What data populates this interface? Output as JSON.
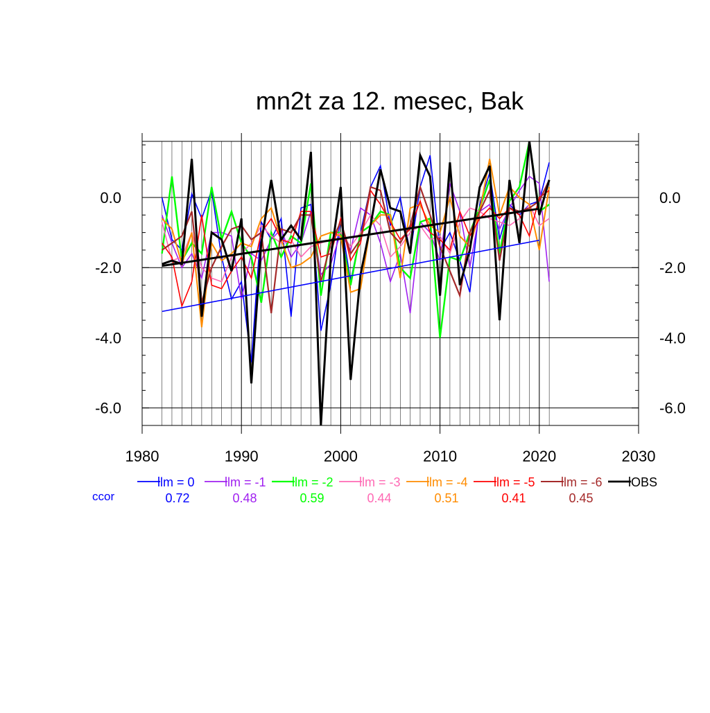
{
  "chart_data": {
    "type": "line",
    "title": "mn2t za 12. mesec, Bak",
    "xlabel": "",
    "ylabel": "",
    "xlim": [
      1980,
      2030
    ],
    "ylim": [
      -6.5,
      1.6
    ],
    "x_ticks": [
      1980,
      1990,
      2000,
      2010,
      2020,
      2030
    ],
    "x_tick_labels": [
      "1980",
      "1990",
      "2000",
      "2010",
      "2020",
      "2030"
    ],
    "y_ticks": [
      0,
      -2,
      -4,
      -6
    ],
    "y_tick_labels": [
      "0.0",
      "-2.0",
      "-4.0",
      "-6.0"
    ],
    "grid": true,
    "legend_position": "bottom",
    "ccor_label": "ccor",
    "x": [
      1982,
      1983,
      1984,
      1985,
      1986,
      1987,
      1988,
      1989,
      1990,
      1991,
      1992,
      1993,
      1994,
      1995,
      1996,
      1997,
      1998,
      1999,
      2000,
      2001,
      2002,
      2003,
      2004,
      2005,
      2006,
      2007,
      2008,
      2009,
      2010,
      2011,
      2012,
      2013,
      2014,
      2015,
      2016,
      2017,
      2018,
      2019,
      2020,
      2021
    ],
    "series": [
      {
        "name": "lm = 0",
        "color": "#0000ff",
        "ccor": "0.72",
        "width": 1.6,
        "values": [
          0.0,
          -1.2,
          -1.5,
          0.1,
          -0.6,
          0.2,
          -1.7,
          -2.9,
          -2.4,
          -4.7,
          -0.7,
          -1.2,
          -0.6,
          -3.4,
          -0.3,
          -0.2,
          -3.8,
          -2.5,
          -0.6,
          -2.4,
          -1.0,
          0.3,
          0.9,
          -0.8,
          0.0,
          -1.6,
          0.3,
          1.2,
          -1.5,
          -1.0,
          -1.8,
          -2.7,
          -0.2,
          0.7,
          -1.2,
          -0.2,
          -0.5,
          -0.2,
          -0.1,
          1.0
        ]
      },
      {
        "name": "lm = -1",
        "color": "#a020f0",
        "ccor": "0.48",
        "width": 1.6,
        "values": [
          -0.5,
          -1.3,
          -2.0,
          -1.6,
          -2.3,
          -1.0,
          -1.0,
          -1.1,
          -2.9,
          -1.6,
          -1.8,
          -1.2,
          -0.9,
          -1.7,
          -1.3,
          -0.4,
          -2.2,
          -1.9,
          -1.0,
          -1.5,
          -0.3,
          -0.5,
          -1.3,
          -2.4,
          -1.6,
          -3.3,
          -0.7,
          -1.0,
          -1.8,
          0.4,
          -0.4,
          -2.0,
          -0.4,
          -0.2,
          -0.9,
          -0.3,
          0.2,
          0.6,
          0.4,
          -2.4
        ]
      },
      {
        "name": "lm = -2",
        "color": "#00ff00",
        "ccor": "0.59",
        "width": 2.4,
        "values": [
          -1.6,
          0.6,
          -1.8,
          -1.3,
          -1.6,
          0.3,
          -1.2,
          -0.4,
          -1.3,
          -1.7,
          -3.0,
          -1.0,
          -1.7,
          -1.1,
          -1.3,
          0.4,
          -2.8,
          -1.0,
          -1.0,
          -2.5,
          -1.0,
          -0.8,
          -0.4,
          -0.5,
          -2.0,
          -2.3,
          -0.7,
          -0.6,
          -4.0,
          -1.7,
          -1.8,
          -1.0,
          -0.3,
          0.5,
          -1.6,
          -0.1,
          0.3,
          1.6,
          -0.4,
          -0.2
        ]
      },
      {
        "name": "lm = -3",
        "color": "#ff69b4",
        "ccor": "0.44",
        "width": 1.6,
        "values": [
          -0.7,
          -1.8,
          -1.7,
          -1.0,
          -2.0,
          -2.3,
          -2.4,
          -1.7,
          -1.6,
          -1.3,
          -0.8,
          -1.1,
          -1.3,
          -1.2,
          -1.7,
          -1.4,
          -1.3,
          -1.2,
          -1.0,
          -1.4,
          -1.0,
          -0.5,
          -0.8,
          -1.7,
          -1.4,
          -1.0,
          -0.8,
          -1.2,
          -1.1,
          -1.6,
          -0.7,
          -0.3,
          -0.4,
          -0.6,
          -0.7,
          -0.8,
          -0.6,
          -0.2,
          -0.8,
          -0.6
        ]
      },
      {
        "name": "lm = -4",
        "color": "#ff8c00",
        "ccor": "0.51",
        "width": 2.0,
        "values": [
          -0.6,
          -0.9,
          -1.9,
          -1.0,
          -3.7,
          -1.3,
          -1.8,
          -1.6,
          -1.3,
          -1.4,
          -0.6,
          -0.3,
          -1.2,
          -2.0,
          -1.9,
          -1.7,
          -1.1,
          -1.0,
          -1.1,
          -2.7,
          -2.6,
          -0.8,
          -0.5,
          -0.5,
          -2.3,
          -0.3,
          -0.2,
          -0.8,
          -1.0,
          0.0,
          -1.1,
          -1.4,
          -0.4,
          1.1,
          -0.5,
          0.3,
          0.0,
          -0.2,
          -1.5,
          0.3
        ]
      },
      {
        "name": "lm = -5",
        "color": "#ff0000",
        "ccor": "0.41",
        "width": 1.6,
        "values": [
          -1.3,
          -1.7,
          -3.1,
          -2.4,
          -0.5,
          -2.5,
          -2.6,
          -2.1,
          -1.7,
          -2.3,
          -1.0,
          -0.6,
          -1.2,
          -1.3,
          -0.4,
          -0.4,
          -1.7,
          -1.6,
          -0.6,
          -1.8,
          -1.3,
          0.2,
          -0.2,
          -0.7,
          -1.2,
          -0.9,
          -0.1,
          -1.0,
          -1.2,
          -1.5,
          -0.4,
          -1.1,
          -0.6,
          -0.3,
          -0.6,
          -0.3,
          -0.5,
          -1.1,
          0.0,
          0.2
        ]
      },
      {
        "name": "lm = -6",
        "color": "#a52a2a",
        "ccor": "0.45",
        "width": 2.2,
        "values": [
          -1.5,
          -1.3,
          -1.1,
          -0.4,
          -3.0,
          -2.0,
          -1.4,
          -0.9,
          -0.8,
          -1.2,
          -1.0,
          -3.3,
          -0.9,
          -1.0,
          -0.5,
          -0.5,
          -2.4,
          -1.3,
          -0.7,
          -1.6,
          -1.2,
          0.3,
          0.2,
          -1.0,
          -1.3,
          -0.8,
          0.3,
          -0.5,
          -1.4,
          -2.1,
          -2.8,
          -1.0,
          -0.4,
          0.2,
          -1.8,
          -0.3,
          -0.4,
          -0.3,
          -0.1,
          0.5
        ]
      },
      {
        "name": "OBS",
        "color": "#000000",
        "ccor": "",
        "width": 3.0,
        "values": [
          -1.9,
          -1.8,
          -1.9,
          1.1,
          -3.4,
          -1.0,
          -1.2,
          -2.1,
          -0.6,
          -5.3,
          -1.3,
          0.5,
          -1.2,
          -0.8,
          -1.2,
          1.3,
          -6.5,
          -1.7,
          0.3,
          -5.2,
          -2.2,
          -0.8,
          0.8,
          -0.3,
          -0.4,
          -1.6,
          1.2,
          0.6,
          -2.8,
          1.0,
          -2.5,
          -1.5,
          0.3,
          0.9,
          -3.5,
          0.5,
          -1.3,
          1.6,
          -0.5,
          0.5
        ]
      }
    ],
    "trend_lines": [
      {
        "series": "lm = 0",
        "color": "#0000ff",
        "width": 1.6,
        "x": [
          1982,
          2020
        ],
        "y": [
          -3.25,
          -1.22
        ]
      },
      {
        "series": "OBS",
        "color": "#000000",
        "width": 3.0,
        "x": [
          1982,
          2020
        ],
        "y": [
          -1.95,
          -0.32
        ]
      }
    ]
  }
}
